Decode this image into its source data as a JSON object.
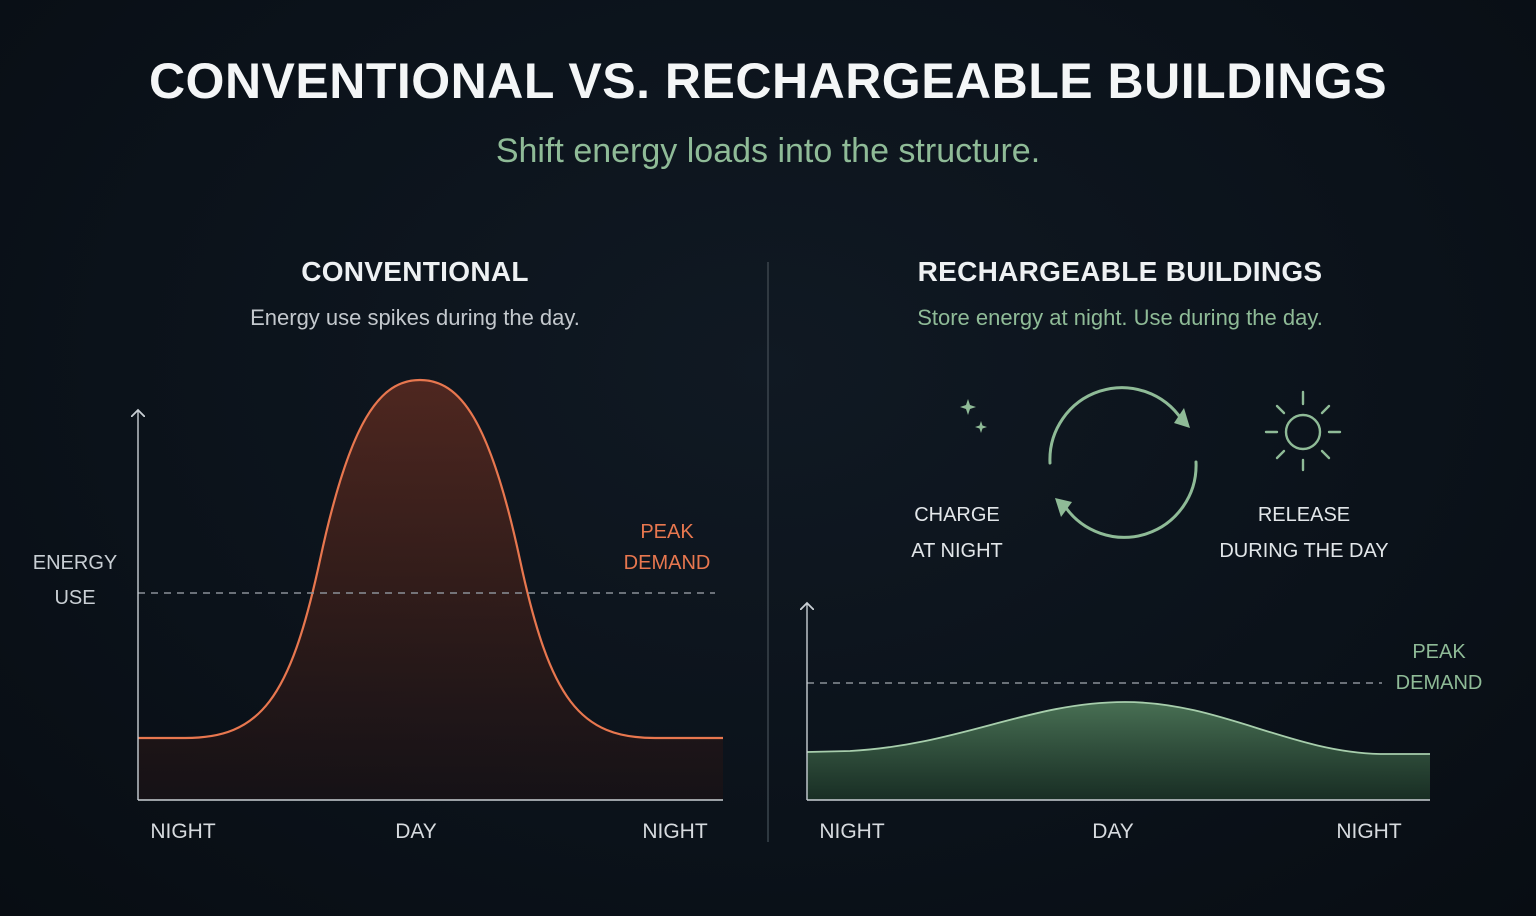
{
  "title": "CONVENTIONAL VS. RECHARGEABLE BUILDINGS",
  "subtitle": "Shift energy loads into the structure.",
  "left_panel": {
    "title": "CONVENTIONAL",
    "description": "Energy use spikes during the day.",
    "y_axis_label": [
      "ENERGY",
      "USE"
    ],
    "peak_label": [
      "PEAK",
      "DEMAND"
    ],
    "x_labels": [
      "NIGHT",
      "DAY",
      "NIGHT"
    ],
    "curve_color": "#e8774f"
  },
  "right_panel": {
    "title": "RECHARGEABLE BUILDINGS",
    "description": "Store energy at night. Use during the day.",
    "charge_label": [
      "CHARGE",
      "AT NIGHT"
    ],
    "release_label": [
      "RELEASE",
      "DURING THE DAY"
    ],
    "peak_label": [
      "PEAK",
      "DEMAND"
    ],
    "x_labels": [
      "NIGHT",
      "DAY",
      "NIGHT"
    ],
    "curve_color": "#8fbb97",
    "icons": [
      "moon-stars-icon",
      "cycle-arrows-icon",
      "sun-icon"
    ]
  }
}
